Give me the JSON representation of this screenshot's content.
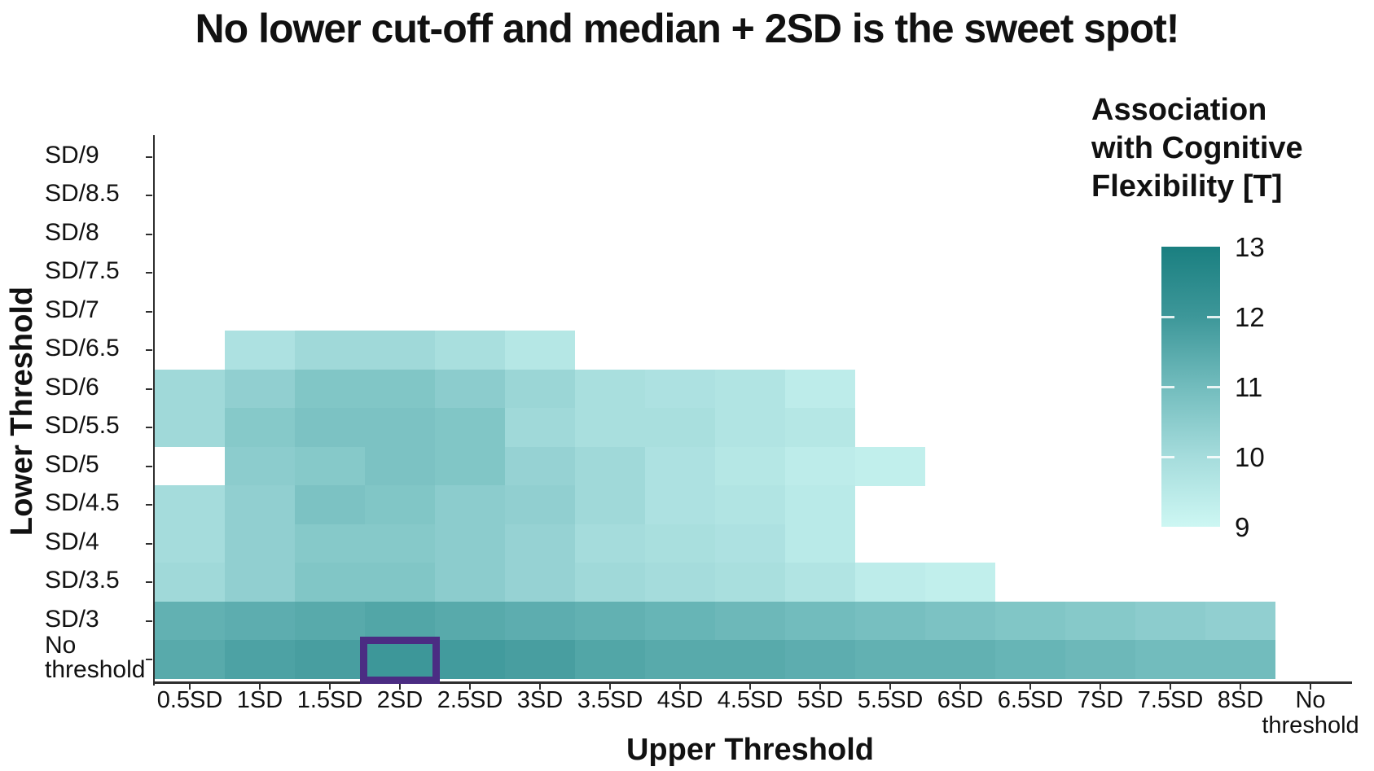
{
  "title": "No lower cut-off and median + 2SD is the sweet spot!",
  "legend": {
    "title_lines": [
      "Association",
      "with Cognitive",
      "Flexibility [T]"
    ],
    "tick_labels": [
      "13",
      "12",
      "11",
      "10",
      "9"
    ]
  },
  "highlight": {
    "x": "2SD",
    "y": "No threshold",
    "color": "#4b2c83"
  },
  "chart_data": {
    "type": "heatmap",
    "title": "No lower cut-off and median + 2SD is the sweet spot!",
    "xlabel": "Upper Threshold",
    "ylabel": "Lower Threshold",
    "legend_title": "Association with Cognitive Flexibility [T]",
    "x_categories": [
      "0.5SD",
      "1SD",
      "1.5SD",
      "2SD",
      "2.5SD",
      "3SD",
      "3.5SD",
      "4SD",
      "4.5SD",
      "5SD",
      "5.5SD",
      "6SD",
      "6.5SD",
      "7SD",
      "7.5SD",
      "8SD",
      "No threshold"
    ],
    "y_categories": [
      "SD/9",
      "SD/8.5",
      "SD/8",
      "SD/7.5",
      "SD/7",
      "SD/6.5",
      "SD/6",
      "SD/5.5",
      "SD/5",
      "SD/4.5",
      "SD/4",
      "SD/3.5",
      "SD/3",
      "No threshold"
    ],
    "color_scale": {
      "domain": [
        9,
        13
      ],
      "stops": [
        [
          9,
          "#cdf7f3"
        ],
        [
          10,
          "#a5dcdc"
        ],
        [
          11,
          "#72bcbd"
        ],
        [
          12,
          "#3d9799"
        ],
        [
          13,
          "#1a7f80"
        ]
      ],
      "legend_ticks": [
        13,
        12,
        11,
        10,
        9
      ],
      "legend_dash_ticks": [
        12,
        11,
        10
      ]
    },
    "values": [
      [
        null,
        null,
        null,
        null,
        null,
        null,
        null,
        null,
        null,
        null,
        null,
        null,
        null,
        null,
        null,
        null,
        null
      ],
      [
        null,
        null,
        null,
        null,
        null,
        null,
        null,
        null,
        null,
        null,
        null,
        null,
        null,
        null,
        null,
        null,
        null
      ],
      [
        null,
        null,
        null,
        null,
        null,
        null,
        null,
        null,
        null,
        null,
        null,
        null,
        null,
        null,
        null,
        null,
        null
      ],
      [
        null,
        null,
        null,
        null,
        null,
        null,
        null,
        null,
        null,
        null,
        null,
        null,
        null,
        null,
        null,
        null,
        null
      ],
      [
        null,
        null,
        null,
        null,
        null,
        null,
        null,
        null,
        null,
        null,
        null,
        null,
        null,
        null,
        null,
        null,
        null
      ],
      [
        null,
        9.8,
        10.1,
        10.1,
        9.9,
        9.6,
        null,
        null,
        null,
        null,
        null,
        null,
        null,
        null,
        null,
        null,
        null
      ],
      [
        10.1,
        10.4,
        10.7,
        10.7,
        10.5,
        10.2,
        9.9,
        9.8,
        9.7,
        9.4,
        null,
        null,
        null,
        null,
        null,
        null,
        null
      ],
      [
        10.1,
        10.6,
        10.8,
        10.8,
        10.7,
        10.1,
        9.9,
        9.9,
        9.7,
        9.6,
        null,
        null,
        null,
        null,
        null,
        null,
        null
      ],
      [
        null,
        10.5,
        10.6,
        10.8,
        10.7,
        10.3,
        10.1,
        9.8,
        9.6,
        9.4,
        9.3,
        null,
        null,
        null,
        null,
        null,
        null
      ],
      [
        10.0,
        10.4,
        10.8,
        10.7,
        10.5,
        10.4,
        10.1,
        9.8,
        9.7,
        9.5,
        null,
        null,
        null,
        null,
        null,
        null,
        null
      ],
      [
        10.0,
        10.4,
        10.6,
        10.6,
        10.5,
        10.3,
        10.0,
        9.9,
        9.8,
        9.5,
        null,
        null,
        null,
        null,
        null,
        null,
        null
      ],
      [
        10.1,
        10.4,
        10.7,
        10.7,
        10.5,
        10.3,
        10.1,
        10.0,
        9.9,
        9.7,
        9.4,
        9.3,
        null,
        null,
        null,
        null,
        null
      ],
      [
        11.3,
        11.4,
        11.5,
        11.6,
        11.5,
        11.4,
        11.3,
        11.2,
        11.1,
        11.0,
        10.9,
        10.8,
        10.7,
        10.6,
        10.5,
        10.4,
        null
      ],
      [
        11.5,
        11.7,
        11.8,
        12.0,
        11.9,
        11.8,
        11.6,
        11.5,
        11.5,
        11.4,
        11.3,
        11.3,
        11.2,
        11.1,
        11.0,
        11.0,
        null
      ]
    ],
    "highlight_cell": {
      "x": "2SD",
      "y": "No threshold"
    }
  }
}
